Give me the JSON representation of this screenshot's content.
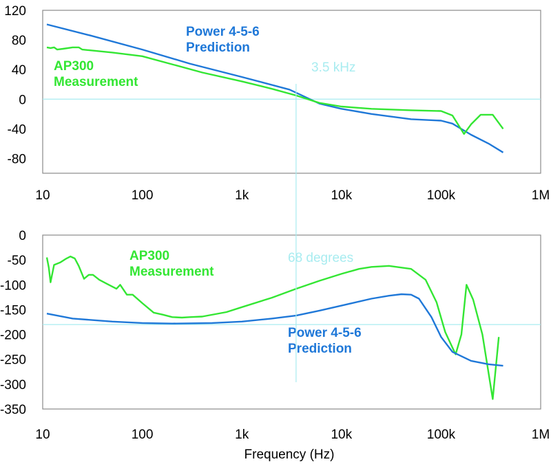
{
  "colors": {
    "measurement": "#33e633",
    "prediction": "#1f78d8",
    "marker": "#a8ecf0",
    "frame": "#8a8a8a"
  },
  "x_axis": {
    "label": "Frequency (Hz)",
    "tick_values": [
      10,
      100,
      1000,
      10000,
      100000,
      1000000
    ],
    "tick_labels": [
      "10",
      "100",
      "1k",
      "10k",
      "100k",
      "1M"
    ]
  },
  "chart_data": [
    {
      "type": "line",
      "title": "",
      "xlabel": "",
      "ylabel": "",
      "xscale": "log",
      "xlim": [
        10,
        1000000
      ],
      "ylim": [
        -100,
        120
      ],
      "yticks": [
        120,
        80,
        40,
        0,
        -40,
        -80
      ],
      "grid": false,
      "reference_lines": [
        {
          "orientation": "horizontal",
          "y": 0
        },
        {
          "orientation": "vertical",
          "x": 3500,
          "label": "3.5 kHz"
        }
      ],
      "series": [
        {
          "name": "Power 4-5-6\nPrediction",
          "label_lines": [
            "Power 4-5-6",
            "Prediction"
          ],
          "color_key": "prediction",
          "points": [
            [
              11,
              101
            ],
            [
              30,
              86
            ],
            [
              100,
              67
            ],
            [
              300,
              48
            ],
            [
              1000,
              30
            ],
            [
              3000,
              13
            ],
            [
              6000,
              -6
            ],
            [
              10000,
              -13
            ],
            [
              20000,
              -20
            ],
            [
              50000,
              -27
            ],
            [
              100000,
              -29
            ],
            [
              130000,
              -33
            ],
            [
              200000,
              -48
            ],
            [
              300000,
              -60
            ],
            [
              420000,
              -72
            ]
          ]
        },
        {
          "name": "AP300\nMeasurement",
          "label_lines": [
            "AP300",
            "Measurement"
          ],
          "color_key": "measurement",
          "points": [
            [
              11,
              70
            ],
            [
              12,
              69
            ],
            [
              13,
              70
            ],
            [
              14,
              67
            ],
            [
              16,
              68
            ],
            [
              20,
              70
            ],
            [
              23,
              70
            ],
            [
              25,
              67
            ],
            [
              30,
              66
            ],
            [
              50,
              63
            ],
            [
              100,
              58
            ],
            [
              200,
              47
            ],
            [
              400,
              36
            ],
            [
              1000,
              24
            ],
            [
              2000,
              14
            ],
            [
              3500,
              5
            ],
            [
              6000,
              -5
            ],
            [
              10000,
              -10
            ],
            [
              20000,
              -13
            ],
            [
              50000,
              -15
            ],
            [
              100000,
              -16
            ],
            [
              130000,
              -22
            ],
            [
              170000,
              -47
            ],
            [
              200000,
              -34
            ],
            [
              250000,
              -21
            ],
            [
              330000,
              -21
            ],
            [
              420000,
              -40
            ]
          ]
        }
      ]
    },
    {
      "type": "line",
      "title": "",
      "xlabel": "Frequency (Hz)",
      "ylabel": "",
      "xscale": "log",
      "xlim": [
        10,
        1000000
      ],
      "ylim": [
        -350,
        0
      ],
      "yticks": [
        0,
        -50,
        -100,
        -150,
        -200,
        -250,
        -300,
        -350
      ],
      "grid": false,
      "reference_lines": [
        {
          "orientation": "horizontal",
          "y": -180
        },
        {
          "orientation": "vertical",
          "x": 3500,
          "label": "68 degrees"
        }
      ],
      "series": [
        {
          "name": "AP300\nMeasurement",
          "label_lines": [
            "AP300",
            "Measurement"
          ],
          "color_key": "measurement",
          "points": [
            [
              11,
              -45
            ],
            [
              11.5,
              -65
            ],
            [
              12,
              -95
            ],
            [
              13,
              -60
            ],
            [
              15,
              -55
            ],
            [
              17,
              -48
            ],
            [
              19,
              -43
            ],
            [
              21,
              -47
            ],
            [
              23,
              -62
            ],
            [
              26,
              -88
            ],
            [
              29,
              -80
            ],
            [
              32,
              -80
            ],
            [
              37,
              -90
            ],
            [
              45,
              -99
            ],
            [
              55,
              -108
            ],
            [
              60,
              -100
            ],
            [
              70,
              -120
            ],
            [
              80,
              -120
            ],
            [
              100,
              -137
            ],
            [
              130,
              -156
            ],
            [
              160,
              -160
            ],
            [
              200,
              -165
            ],
            [
              250,
              -166
            ],
            [
              300,
              -165
            ],
            [
              400,
              -164
            ],
            [
              700,
              -155
            ],
            [
              1000,
              -145
            ],
            [
              2000,
              -126
            ],
            [
              3500,
              -108
            ],
            [
              6000,
              -92
            ],
            [
              10000,
              -78
            ],
            [
              15000,
              -68
            ],
            [
              20000,
              -64
            ],
            [
              30000,
              -62
            ],
            [
              50000,
              -68
            ],
            [
              70000,
              -90
            ],
            [
              90000,
              -135
            ],
            [
              110000,
              -195
            ],
            [
              140000,
              -240
            ],
            [
              160000,
              -200
            ],
            [
              180000,
              -100
            ],
            [
              210000,
              -130
            ],
            [
              260000,
              -200
            ],
            [
              330000,
              -330
            ],
            [
              380000,
              -205
            ]
          ]
        },
        {
          "name": "Power 4-5-6\nPrediction",
          "label_lines": [
            "Power 4-5-6",
            "Prediction"
          ],
          "color_key": "prediction",
          "points": [
            [
              11,
              -158
            ],
            [
              20,
              -168
            ],
            [
              50,
              -174
            ],
            [
              100,
              -177
            ],
            [
              200,
              -178
            ],
            [
              500,
              -177
            ],
            [
              1000,
              -174
            ],
            [
              2000,
              -168
            ],
            [
              3500,
              -162
            ],
            [
              6000,
              -152
            ],
            [
              10000,
              -142
            ],
            [
              20000,
              -128
            ],
            [
              30000,
              -122
            ],
            [
              40000,
              -119
            ],
            [
              50000,
              -120
            ],
            [
              60000,
              -128
            ],
            [
              80000,
              -165
            ],
            [
              100000,
              -205
            ],
            [
              130000,
              -235
            ],
            [
              200000,
              -253
            ],
            [
              300000,
              -260
            ],
            [
              420000,
              -263
            ]
          ]
        }
      ]
    }
  ]
}
